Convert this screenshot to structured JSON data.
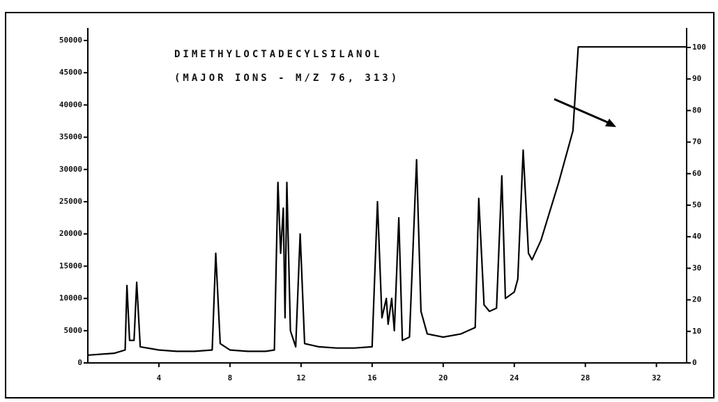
{
  "chart_data": {
    "type": "line",
    "annotations": [
      "DIMETHYLOCTADECYLSILANOL",
      "(MAJOR IONS - M/Z 76, 313)"
    ],
    "x": [
      0,
      1.5,
      2.1,
      2.2,
      2.35,
      2.6,
      2.75,
      2.95,
      4,
      5,
      6,
      7,
      7.2,
      7.45,
      8,
      9,
      10,
      10.5,
      10.7,
      10.85,
      11.0,
      11.1,
      11.2,
      11.4,
      11.7,
      11.95,
      12.2,
      13,
      14,
      15,
      16.0,
      16.3,
      16.55,
      16.8,
      16.9,
      17.1,
      17.25,
      17.5,
      17.7,
      18.1,
      18.5,
      18.75,
      19.1,
      20,
      21,
      21.8,
      22.0,
      22.3,
      22.6,
      23.0,
      23.3,
      23.5,
      24.0,
      24.2,
      24.5,
      24.8,
      25.0,
      25.5,
      26.5,
      27.3,
      27.6,
      33.7
    ],
    "series": [
      {
        "color": "#000000",
        "values": [
          1200,
          1500,
          2000,
          12000,
          3500,
          3500,
          12500,
          2500,
          2000,
          1800,
          1800,
          2000,
          17000,
          3000,
          2000,
          1800,
          1800,
          2000,
          28000,
          17000,
          24000,
          7000,
          28000,
          5000,
          2500,
          20000,
          3000,
          2500,
          2300,
          2300,
          2500,
          25000,
          7000,
          10000,
          6000,
          10000,
          5000,
          22500,
          3500,
          4000,
          31500,
          8000,
          4500,
          4000,
          4500,
          5500,
          25500,
          9000,
          8000,
          8500,
          29000,
          10000,
          11000,
          13000,
          33000,
          17000,
          16000,
          19000,
          28000,
          36000,
          49000,
          49000
        ]
      }
    ],
    "xlim": [
      0,
      33.7
    ],
    "xticks": [
      4,
      8,
      12,
      16,
      20,
      24,
      28,
      32
    ],
    "ylim": [
      0,
      50000
    ],
    "yticks": [
      0,
      5000,
      10000,
      15000,
      20000,
      25000,
      30000,
      35000,
      40000,
      45000,
      50000
    ],
    "y2lim": [
      0,
      100
    ],
    "y2ticks": [
      0,
      10,
      20,
      30,
      40,
      50,
      60,
      70,
      80,
      90,
      100
    ]
  }
}
